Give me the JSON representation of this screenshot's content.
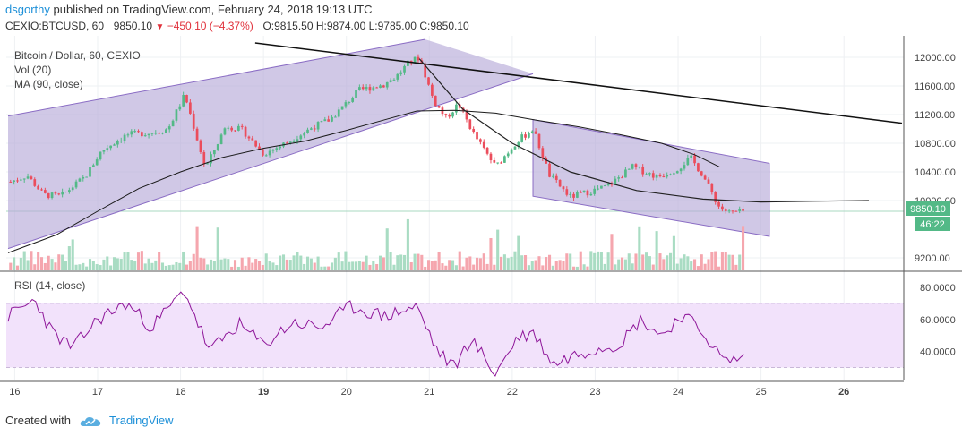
{
  "header": {
    "author": "dsgorthy",
    "published_text": "published on TradingView.com, February 24, 2018 19:13 UTC",
    "symbol": "CEXIO:BTCUSD, 60",
    "last": "9850.10",
    "change": "−450.10 (−4.37%)",
    "open": "O:9815.50",
    "high": "H:9874.00",
    "low": "L:9785.00",
    "close": "C:9850.10"
  },
  "legend": {
    "main": "Bitcoin / Dollar, 60, CEXIO",
    "vol": "Vol (20)",
    "ma": "MA (90, close)",
    "rsi": "RSI (14, close)"
  },
  "badges": {
    "price": "9850.10",
    "timer": "46:22"
  },
  "footer": {
    "created_with": "Created with",
    "brand": "TradingView"
  },
  "colors": {
    "up": "#53b987",
    "down": "#eb4d5c",
    "vol_up": "#a9dcc3",
    "vol_down": "#f5a6ae",
    "channel_fill": "#b7abd9",
    "channel_line": "#8a6cc4",
    "rsi_band": "#f2e2fb",
    "rsi_line": "#8e1599",
    "ma_line": "#1a1a1a",
    "brand": "#1e90d8"
  },
  "chart_data": {
    "type": "candlestick",
    "title": "Bitcoin / Dollar, 60, CEXIO",
    "ylim": [
      9050,
      12200
    ],
    "price_ticks": [
      "12000.00",
      "11600.00",
      "11200.00",
      "10800.00",
      "10400.00",
      "10000.00",
      "9200.00"
    ],
    "price_tick_values": [
      12000,
      11600,
      11200,
      10800,
      10400,
      10000,
      9200
    ],
    "x_ticks": [
      "16",
      "17",
      "18",
      "19",
      "20",
      "21",
      "22",
      "23",
      "24",
      "25",
      "26"
    ],
    "x_tick_days": [
      16,
      17,
      18,
      19,
      20,
      21,
      22,
      23,
      24,
      25,
      26
    ],
    "last_price": 9850.1,
    "close_path": [
      {
        "day": 15.92,
        "price": 10250
      },
      {
        "day": 16.15,
        "price": 10350
      },
      {
        "day": 16.35,
        "price": 10080
      },
      {
        "day": 16.55,
        "price": 10060
      },
      {
        "day": 16.85,
        "price": 10330
      },
      {
        "day": 17.05,
        "price": 10700
      },
      {
        "day": 17.35,
        "price": 10920
      },
      {
        "day": 17.65,
        "price": 10950
      },
      {
        "day": 17.85,
        "price": 11000
      },
      {
        "day": 18.05,
        "price": 11480
      },
      {
        "day": 18.3,
        "price": 10450
      },
      {
        "day": 18.55,
        "price": 11050
      },
      {
        "day": 18.75,
        "price": 10980
      },
      {
        "day": 19.0,
        "price": 10650
      },
      {
        "day": 19.3,
        "price": 10820
      },
      {
        "day": 19.6,
        "price": 11030
      },
      {
        "day": 19.8,
        "price": 11130
      },
      {
        "day": 19.95,
        "price": 11300
      },
      {
        "day": 20.15,
        "price": 11540
      },
      {
        "day": 20.45,
        "price": 11620
      },
      {
        "day": 20.6,
        "price": 11730
      },
      {
        "day": 20.75,
        "price": 11920
      },
      {
        "day": 20.88,
        "price": 12000
      },
      {
        "day": 21.05,
        "price": 11400
      },
      {
        "day": 21.2,
        "price": 11150
      },
      {
        "day": 21.35,
        "price": 11350
      },
      {
        "day": 21.55,
        "price": 10900
      },
      {
        "day": 21.8,
        "price": 10470
      },
      {
        "day": 22.05,
        "price": 10820
      },
      {
        "day": 22.25,
        "price": 11000
      },
      {
        "day": 22.45,
        "price": 10350
      },
      {
        "day": 22.7,
        "price": 10050
      },
      {
        "day": 22.95,
        "price": 10130
      },
      {
        "day": 23.15,
        "price": 10200
      },
      {
        "day": 23.45,
        "price": 10470
      },
      {
        "day": 23.75,
        "price": 10330
      },
      {
        "day": 24.0,
        "price": 10450
      },
      {
        "day": 24.15,
        "price": 10600
      },
      {
        "day": 24.3,
        "price": 10350
      },
      {
        "day": 24.5,
        "price": 9900
      },
      {
        "day": 24.62,
        "price": 9830
      },
      {
        "day": 24.8,
        "price": 9850
      }
    ],
    "ma90": [
      {
        "day": 15.92,
        "price": 9270
      },
      {
        "day": 16.5,
        "price": 9520
      },
      {
        "day": 17.0,
        "price": 9850
      },
      {
        "day": 17.5,
        "price": 10170
      },
      {
        "day": 18.0,
        "price": 10400
      },
      {
        "day": 18.5,
        "price": 10600
      },
      {
        "day": 19.0,
        "price": 10730
      },
      {
        "day": 19.5,
        "price": 10830
      },
      {
        "day": 20.0,
        "price": 10980
      },
      {
        "day": 20.5,
        "price": 11140
      },
      {
        "day": 20.85,
        "price": 11250
      },
      {
        "day": 21.3,
        "price": 11260
      },
      {
        "day": 21.8,
        "price": 11220
      },
      {
        "day": 22.3,
        "price": 11120
      },
      {
        "day": 22.8,
        "price": 11030
      },
      {
        "day": 23.3,
        "price": 10920
      },
      {
        "day": 23.8,
        "price": 10800
      },
      {
        "day": 24.2,
        "price": 10640
      },
      {
        "day": 24.5,
        "price": 10470
      }
    ],
    "rsi": {
      "ticks": [
        "80.0000",
        "60.0000",
        "40.0000"
      ],
      "tick_values": [
        80,
        60,
        40
      ],
      "band": [
        30,
        70
      ],
      "values": [
        {
          "day": 15.92,
          "v": 62
        },
        {
          "day": 16.25,
          "v": 72
        },
        {
          "day": 16.45,
          "v": 52
        },
        {
          "day": 16.7,
          "v": 42
        },
        {
          "day": 17.0,
          "v": 60
        },
        {
          "day": 17.35,
          "v": 70
        },
        {
          "day": 17.65,
          "v": 55
        },
        {
          "day": 18.05,
          "v": 78
        },
        {
          "day": 18.35,
          "v": 40
        },
        {
          "day": 18.7,
          "v": 57
        },
        {
          "day": 19.0,
          "v": 44
        },
        {
          "day": 19.35,
          "v": 58
        },
        {
          "day": 19.7,
          "v": 55
        },
        {
          "day": 20.05,
          "v": 68
        },
        {
          "day": 20.45,
          "v": 62
        },
        {
          "day": 20.85,
          "v": 68
        },
        {
          "day": 21.1,
          "v": 40
        },
        {
          "day": 21.3,
          "v": 30
        },
        {
          "day": 21.5,
          "v": 48
        },
        {
          "day": 21.8,
          "v": 26
        },
        {
          "day": 22.05,
          "v": 48
        },
        {
          "day": 22.25,
          "v": 52
        },
        {
          "day": 22.5,
          "v": 32
        },
        {
          "day": 22.75,
          "v": 38
        },
        {
          "day": 23.0,
          "v": 42
        },
        {
          "day": 23.3,
          "v": 45
        },
        {
          "day": 23.55,
          "v": 60
        },
        {
          "day": 23.8,
          "v": 50
        },
        {
          "day": 24.05,
          "v": 63
        },
        {
          "day": 24.3,
          "v": 52
        },
        {
          "day": 24.55,
          "v": 34
        },
        {
          "day": 24.8,
          "v": 36
        }
      ]
    },
    "drawings": {
      "ascending_channel": [
        {
          "day": 15.92,
          "price": 11180
        },
        {
          "day": 20.95,
          "price": 12250
        },
        {
          "day": 22.25,
          "price": 11770
        },
        {
          "day": 15.92,
          "price": 9330
        }
      ],
      "descending_channel": [
        {
          "day": 22.25,
          "price": 11130
        },
        {
          "day": 25.1,
          "price": 10520
        },
        {
          "day": 25.1,
          "price": 9500
        },
        {
          "day": 22.25,
          "price": 10060
        }
      ],
      "long_trendline": [
        {
          "day": 18.9,
          "price": 12200
        },
        {
          "day": 26.7,
          "price": 11080
        }
      ],
      "arc": [
        {
          "day": 20.88,
          "price": 11980
        },
        {
          "day": 21.4,
          "price": 11280
        },
        {
          "day": 22.0,
          "price": 10800
        },
        {
          "day": 22.7,
          "price": 10400
        },
        {
          "day": 23.5,
          "price": 10140
        },
        {
          "day": 24.3,
          "price": 10020
        },
        {
          "day": 25.0,
          "price": 9980
        },
        {
          "day": 25.6,
          "price": 9990
        },
        {
          "day": 26.3,
          "price": 10000
        }
      ]
    }
  }
}
